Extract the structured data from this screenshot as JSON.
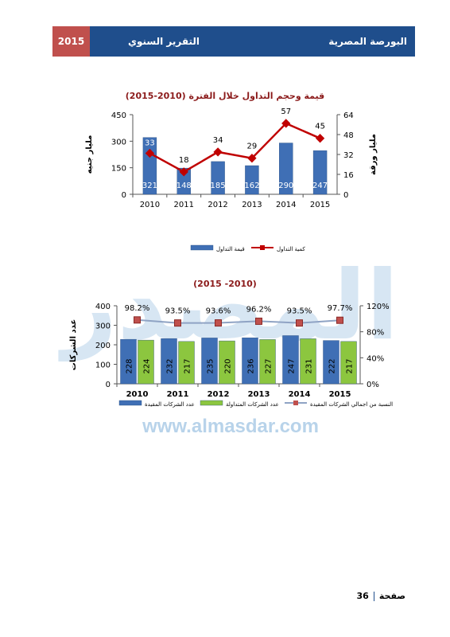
{
  "header": {
    "year": "2015",
    "report": "التقرير السنوي",
    "org": "البورصة المصرية"
  },
  "watermark": {
    "text": "المصدر",
    "url": "www.almasdar.com"
  },
  "footer": {
    "page_label": "صفحة",
    "page_number": "36"
  },
  "colors": {
    "bar_blue": "#3f6fb5",
    "bar_green": "#8cc63f",
    "line_red": "#c00000",
    "header_blue": "#1f4e8c",
    "header_red": "#c0504d"
  },
  "chart_data": [
    {
      "type": "bar",
      "title": "قيمة وحجم التداول خلال الفترة (2010-2015)",
      "ylabel": "مليار جنيه",
      "y2label": "مليار ورقة",
      "categories": [
        "2010",
        "2011",
        "2012",
        "2013",
        "2014",
        "2015"
      ],
      "ylim": [
        0,
        450
      ],
      "yticks": [
        "0",
        "150",
        "300",
        "450"
      ],
      "y2lim": [
        0,
        64
      ],
      "y2ticks": [
        "0",
        "16",
        "32",
        "48",
        "64"
      ],
      "grid": false,
      "legend": "bottom",
      "series": [
        {
          "name": "قيمة التداول",
          "kind": "bar",
          "axis": "left",
          "values": [
            321,
            148,
            185,
            162,
            290,
            247
          ]
        },
        {
          "name": "كمية التداول",
          "kind": "line",
          "axis": "right",
          "values": [
            33,
            18,
            34,
            29,
            57,
            45
          ]
        }
      ]
    },
    {
      "type": "bar",
      "title": "(2015 -2010)",
      "ylabel": "عدد الشركات",
      "categories": [
        "2010",
        "2011",
        "2012",
        "2013",
        "2014",
        "2015"
      ],
      "ylim": [
        0,
        400
      ],
      "yticks": [
        "0",
        "100",
        "200",
        "300",
        "400"
      ],
      "y2lim": [
        0,
        120
      ],
      "y2ticks": [
        "0%",
        "40%",
        "80%",
        "120%"
      ],
      "grid": false,
      "legend": "bottom",
      "series": [
        {
          "name": "عدد الشركات المقيدة",
          "kind": "bar",
          "axis": "left",
          "values": [
            228,
            232,
            235,
            236,
            247,
            222
          ]
        },
        {
          "name": "عدد الشركات المتداولة",
          "kind": "bar",
          "axis": "left",
          "values": [
            224,
            217,
            220,
            227,
            231,
            217
          ]
        },
        {
          "name": "النسبة من اجمالي الشركات المقيدة",
          "kind": "line",
          "axis": "right",
          "values": [
            98.2,
            93.5,
            93.6,
            96.2,
            93.5,
            97.7
          ],
          "labels": [
            "98.2%",
            "93.5%",
            "93.6%",
            "96.2%",
            "93.5%",
            "97.7%"
          ]
        }
      ]
    }
  ]
}
